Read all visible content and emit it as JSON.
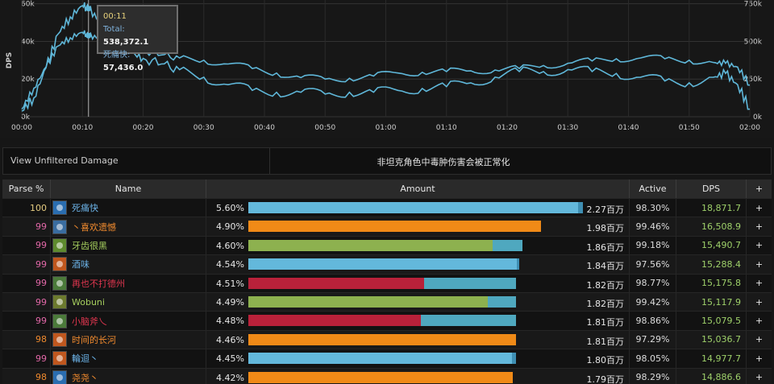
{
  "chart_data": {
    "type": "line",
    "ylabel": "DPS",
    "x_ticks": [
      "00:00",
      "00:10",
      "00:20",
      "00:30",
      "00:40",
      "00:50",
      "01:00",
      "01:10",
      "01:20",
      "01:30",
      "01:40",
      "01:50",
      "02:00"
    ],
    "y_left_ticks": [
      "0k",
      "20k",
      "40k",
      "60k"
    ],
    "y_right_ticks": [
      "0k",
      "250k",
      "500k",
      "750k"
    ],
    "y_left_range": [
      0,
      62000
    ],
    "y_right_range": [
      0,
      775000
    ],
    "x_range": [
      0,
      120
    ],
    "series": [
      {
        "name": "Total",
        "axis": "right",
        "color": "#5fb7d9",
        "x": [
          0,
          2,
          4,
          6,
          8,
          10,
          11,
          13,
          15,
          18,
          20,
          23,
          26,
          30,
          34,
          38,
          42,
          46,
          50,
          54,
          58,
          62,
          66,
          70,
          74,
          78,
          82,
          86,
          90,
          94,
          98,
          102,
          106,
          110,
          114,
          116,
          118,
          120
        ],
        "y": [
          50000,
          190000,
          330000,
          470000,
          525000,
          560000,
          538372,
          520000,
          495000,
          470000,
          440000,
          410000,
          390000,
          375000,
          350000,
          320000,
          290000,
          260000,
          250000,
          255000,
          270000,
          290000,
          295000,
          300000,
          305000,
          310000,
          320000,
          340000,
          355000,
          370000,
          385000,
          390000,
          385000,
          375000,
          360000,
          355000,
          330000,
          210000
        ]
      },
      {
        "name": "死痛快",
        "axis": "left",
        "color": "#5fb7d9",
        "x": [
          0,
          2,
          4,
          6,
          8,
          10,
          11,
          13,
          15,
          18,
          20,
          23,
          26,
          30,
          34,
          38,
          42,
          46,
          50,
          54,
          58,
          62,
          66,
          70,
          74,
          78,
          82,
          86,
          90,
          94,
          98,
          102,
          106,
          110,
          114,
          116,
          118,
          120
        ],
        "y": [
          3000,
          10000,
          26000,
          44000,
          53000,
          59000,
          57436,
          50000,
          40000,
          34000,
          31000,
          28000,
          25000,
          21000,
          17000,
          14000,
          13000,
          13000,
          12000,
          13000,
          13000,
          14000,
          15000,
          16000,
          18000,
          21000,
          24000,
          24000,
          25000,
          24000,
          23000,
          21000,
          19000,
          18000,
          21000,
          23000,
          17000,
          4000
        ]
      }
    ],
    "tooltip": {
      "time": "00:11",
      "total_label": "Total:",
      "total_value": "538,372.1",
      "player_label": "死痛快:",
      "player_value": "57,436.0"
    },
    "grid": true
  },
  "filter": {
    "link": "View Unfiltered Damage",
    "note": "非坦克角色中毒肿伤害会被正常化"
  },
  "table": {
    "headers": {
      "parse": "Parse %",
      "name": "Name",
      "amount": "Amount",
      "active": "Active",
      "dps": "DPS",
      "plus": "+"
    },
    "rows": [
      {
        "parse": "100",
        "parse_color": "#e5cc80",
        "name": "死痛快",
        "name_color": "#6cb3e8",
        "icon_color": "#2a6db0",
        "pct": "5.60%",
        "segs": [
          {
            "f": 0.985,
            "c": "#63b8db"
          },
          {
            "f": 0.015,
            "c": "#3f8fb3"
          }
        ],
        "share": 1.0,
        "amount": "2.27百万",
        "active": "98.30%",
        "dps": "18,871.7"
      },
      {
        "parse": "99",
        "parse_color": "#e268a8",
        "name": "丶喜欢遗憾",
        "name_color": "#f08a2e",
        "icon_color": "#3a6da0",
        "pct": "4.90%",
        "segs": [
          {
            "f": 1.0,
            "c": "#f08a17"
          }
        ],
        "share": 0.875,
        "amount": "1.98百万",
        "active": "99.46%",
        "dps": "16,508.9"
      },
      {
        "parse": "99",
        "parse_color": "#e268a8",
        "name": "牙齿很黑",
        "name_color": "#a6cf5e",
        "icon_color": "#5e8a2e",
        "pct": "4.60%",
        "segs": [
          {
            "f": 0.89,
            "c": "#8db14f"
          },
          {
            "f": 0.11,
            "c": "#4fa8bf"
          }
        ],
        "share": 0.82,
        "amount": "1.86百万",
        "active": "99.18%",
        "dps": "15,490.7"
      },
      {
        "parse": "99",
        "parse_color": "#e268a8",
        "name": "酒味",
        "name_color": "#6cb3e8",
        "icon_color": "#c0571e",
        "pct": "4.54%",
        "segs": [
          {
            "f": 0.99,
            "c": "#63b8db"
          },
          {
            "f": 0.01,
            "c": "#3f8fb3"
          }
        ],
        "share": 0.81,
        "amount": "1.84百万",
        "active": "97.56%",
        "dps": "15,288.4"
      },
      {
        "parse": "99",
        "parse_color": "#e268a8",
        "name": "再也不打德州",
        "name_color": "#e0364f",
        "icon_color": "#4b7a3a",
        "pct": "4.51%",
        "segs": [
          {
            "f": 0.655,
            "c": "#b9213a"
          },
          {
            "f": 0.345,
            "c": "#4fa8bf"
          }
        ],
        "share": 0.8,
        "amount": "1.82百万",
        "active": "98.77%",
        "dps": "15,175.8"
      },
      {
        "parse": "99",
        "parse_color": "#e268a8",
        "name": "Wobuni",
        "name_color": "#a6cf5e",
        "icon_color": "#6c7a2e",
        "pct": "4.49%",
        "segs": [
          {
            "f": 0.895,
            "c": "#8db14f"
          },
          {
            "f": 0.105,
            "c": "#4fa8bf"
          }
        ],
        "share": 0.8,
        "amount": "1.82百万",
        "active": "99.42%",
        "dps": "15,117.9"
      },
      {
        "parse": "99",
        "parse_color": "#e268a8",
        "name": "小脑斧乀",
        "name_color": "#e0364f",
        "icon_color": "#4b7a3a",
        "pct": "4.48%",
        "segs": [
          {
            "f": 0.645,
            "c": "#b9213a"
          },
          {
            "f": 0.355,
            "c": "#4fa8bf"
          }
        ],
        "share": 0.8,
        "amount": "1.81百万",
        "active": "98.86%",
        "dps": "15,079.5"
      },
      {
        "parse": "98",
        "parse_color": "#f08a2e",
        "name": "时间的长河",
        "name_color": "#f08a2e",
        "icon_color": "#c0571e",
        "pct": "4.46%",
        "segs": [
          {
            "f": 1.0,
            "c": "#f08a17"
          }
        ],
        "share": 0.8,
        "amount": "1.81百万",
        "active": "97.29%",
        "dps": "15,036.7"
      },
      {
        "parse": "99",
        "parse_color": "#e268a8",
        "name": "輪迴丶",
        "name_color": "#6cb3e8",
        "icon_color": "#c0571e",
        "pct": "4.45%",
        "segs": [
          {
            "f": 0.985,
            "c": "#63b8db"
          },
          {
            "f": 0.015,
            "c": "#3f8fb3"
          }
        ],
        "share": 0.8,
        "amount": "1.80百万",
        "active": "98.05%",
        "dps": "14,977.7"
      },
      {
        "parse": "98",
        "parse_color": "#f08a2e",
        "name": "尧尧丶",
        "name_color": "#f08a2e",
        "icon_color": "#2a6db0",
        "pct": "4.42%",
        "segs": [
          {
            "f": 1.0,
            "c": "#f08a17"
          }
        ],
        "share": 0.79,
        "amount": "1.79百万",
        "active": "98.29%",
        "dps": "14,886.6"
      }
    ]
  }
}
